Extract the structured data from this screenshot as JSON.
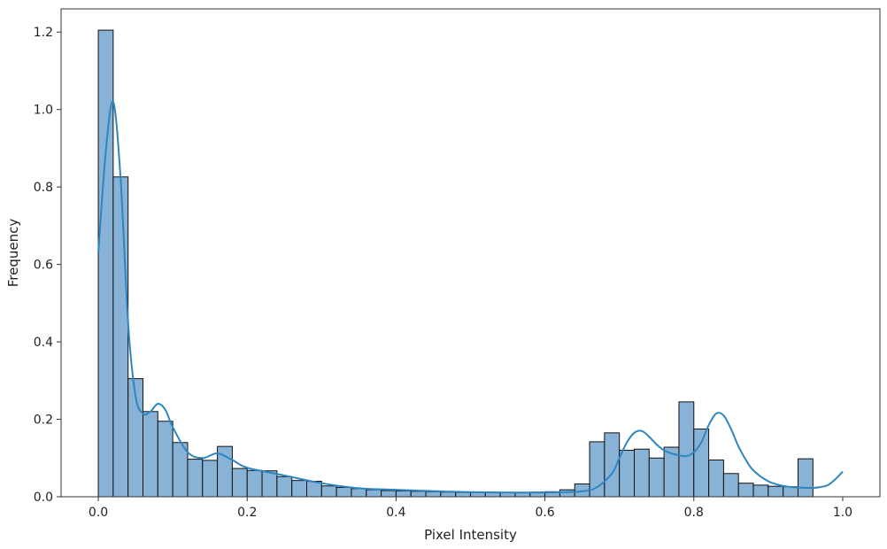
{
  "chart_data": {
    "type": "bar",
    "subtype": "histogram-with-kde",
    "title": "",
    "xlabel": "Pixel Intensity",
    "ylabel": "Frequency",
    "xlim": [
      -0.05,
      1.05
    ],
    "ylim": [
      0,
      1.26
    ],
    "xticks": [
      0.0,
      0.2,
      0.4,
      0.6,
      0.8,
      1.0
    ],
    "xtick_labels": [
      "0.0",
      "0.2",
      "0.4",
      "0.6",
      "0.8",
      "1.0"
    ],
    "yticks": [
      0.0,
      0.2,
      0.4,
      0.6,
      0.8,
      1.0,
      1.2
    ],
    "ytick_labels": [
      "0.0",
      "0.2",
      "0.4",
      "0.6",
      "0.8",
      "1.0",
      "1.2"
    ],
    "grid": false,
    "legend": "none",
    "bin_start": 0.0,
    "bin_width": 0.02,
    "values": [
      1.205,
      0.826,
      0.305,
      0.22,
      0.195,
      0.14,
      0.097,
      0.094,
      0.13,
      0.073,
      0.068,
      0.067,
      0.052,
      0.042,
      0.04,
      0.028,
      0.024,
      0.021,
      0.018,
      0.016,
      0.015,
      0.014,
      0.013,
      0.012,
      0.011,
      0.011,
      0.011,
      0.011,
      0.011,
      0.012,
      0.013,
      0.018,
      0.033,
      0.142,
      0.165,
      0.12,
      0.123,
      0.1,
      0.128,
      0.245,
      0.175,
      0.095,
      0.06,
      0.035,
      0.03,
      0.027,
      0.026,
      0.098
    ],
    "kde": {
      "x": [
        0.0,
        0.01,
        0.02,
        0.03,
        0.04,
        0.05,
        0.06,
        0.07,
        0.08,
        0.09,
        0.1,
        0.12,
        0.14,
        0.16,
        0.18,
        0.2,
        0.25,
        0.3,
        0.35,
        0.4,
        0.5,
        0.6,
        0.65,
        0.67,
        0.69,
        0.7,
        0.71,
        0.72,
        0.73,
        0.74,
        0.75,
        0.76,
        0.77,
        0.78,
        0.79,
        0.8,
        0.81,
        0.82,
        0.83,
        0.84,
        0.85,
        0.86,
        0.87,
        0.88,
        0.9,
        0.92,
        0.94,
        0.96,
        0.97,
        0.98,
        0.99,
        1.0
      ],
      "y": [
        0.63,
        0.89,
        1.02,
        0.82,
        0.45,
        0.26,
        0.215,
        0.22,
        0.24,
        0.225,
        0.18,
        0.115,
        0.1,
        0.112,
        0.095,
        0.075,
        0.055,
        0.035,
        0.022,
        0.018,
        0.012,
        0.011,
        0.014,
        0.025,
        0.06,
        0.1,
        0.14,
        0.165,
        0.17,
        0.155,
        0.135,
        0.12,
        0.112,
        0.107,
        0.105,
        0.115,
        0.14,
        0.185,
        0.215,
        0.21,
        0.175,
        0.13,
        0.095,
        0.068,
        0.04,
        0.028,
        0.024,
        0.023,
        0.025,
        0.03,
        0.045,
        0.065
      ]
    },
    "colors": {
      "bar_fill": "#89b3d6",
      "bar_edge": "#111111",
      "kde_line": "#2e86c1",
      "axes": "#333333",
      "text": "#222222"
    }
  }
}
